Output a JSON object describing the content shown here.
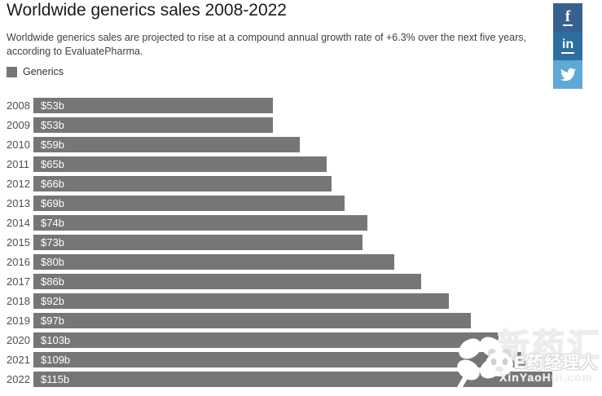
{
  "header": {
    "title": "Worldwide generics sales 2008-2022",
    "subtitle": "Worldwide generics sales are projected to rise at a compound annual growth rate of +6.3% over the next five years, according to EvaluatePharma."
  },
  "legend": {
    "label": "Generics",
    "swatch_color": "#767678"
  },
  "share_buttons": [
    {
      "name": "facebook",
      "label": "f",
      "color": "#38618f"
    },
    {
      "name": "linkedin",
      "label": "in",
      "color": "#2d6f9f"
    },
    {
      "name": "twitter",
      "label": "twitter-bird",
      "color": "#5ea9d6"
    }
  ],
  "chart_data": {
    "type": "bar",
    "orientation": "horizontal",
    "series_name": "Generics",
    "categories": [
      "2008",
      "2009",
      "2010",
      "2011",
      "2012",
      "2013",
      "2014",
      "2015",
      "2016",
      "2017",
      "2018",
      "2019",
      "2020",
      "2021",
      "2022"
    ],
    "values": [
      53,
      53,
      59,
      65,
      66,
      69,
      74,
      73,
      80,
      86,
      92,
      97,
      103,
      109,
      115
    ],
    "value_labels": [
      "$53b",
      "$53b",
      "$59b",
      "$65b",
      "$66b",
      "$69b",
      "$74b",
      "$73b",
      "$80b",
      "$86b",
      "$92b",
      "$97b",
      "$103b",
      "$109b",
      "$115b"
    ],
    "unit": "USD billions",
    "bar_color": "#767678",
    "value_label_color": "#ffffff",
    "xlim": [
      0,
      126
    ],
    "grid": false,
    "legend_position": "top-left"
  },
  "watermark": {
    "brand_text": "E药经理人",
    "outline_text": "新药汇",
    "url_text": "XinYaoHui.com"
  }
}
